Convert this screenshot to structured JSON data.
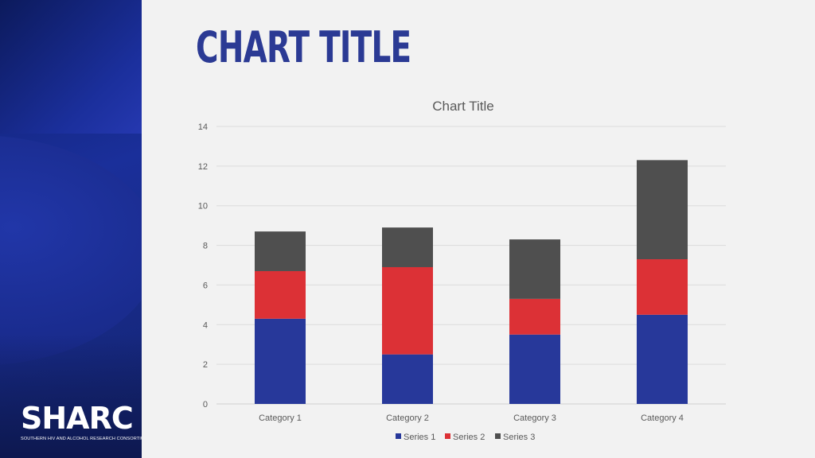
{
  "slide": {
    "title": "CHART TITLE",
    "logo_text": "SHARC",
    "logo_tagline": "SOUTHERN HIV AND ALCOHOL RESEARCH CONSORTIUM"
  },
  "colors": {
    "series1": "#27389a",
    "series2": "#dc3136",
    "series3": "#4f4f4f",
    "page_title": "#2b3a94"
  },
  "chart_data": {
    "type": "bar",
    "stacked": true,
    "title": "Chart Title",
    "categories": [
      "Category 1",
      "Category 2",
      "Category 3",
      "Category 4"
    ],
    "series": [
      {
        "name": "Series 1",
        "values": [
          4.3,
          2.5,
          3.5,
          4.5
        ]
      },
      {
        "name": "Series 2",
        "values": [
          2.4,
          4.4,
          1.8,
          2.8
        ]
      },
      {
        "name": "Series 3",
        "values": [
          2.0,
          2.0,
          3.0,
          5.0
        ]
      }
    ],
    "ylim": [
      0,
      14
    ],
    "yticks": [
      0,
      2,
      4,
      6,
      8,
      10,
      12,
      14
    ],
    "grid": true,
    "legend": "bottom"
  }
}
